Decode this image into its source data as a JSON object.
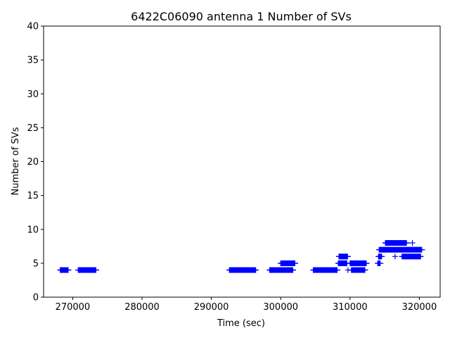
{
  "chart_data": {
    "type": "scatter",
    "title": "6422C06090 antenna 1 Number of SVs",
    "xlabel": "Time (sec)",
    "ylabel": "Number of SVs",
    "xlim": [
      265800,
      323000
    ],
    "ylim": [
      0,
      40
    ],
    "x_ticks": [
      270000,
      280000,
      290000,
      300000,
      310000,
      320000
    ],
    "x_tick_labels": [
      "270000",
      "280000",
      "290000",
      "300000",
      "310000",
      "320000"
    ],
    "y_ticks": [
      0,
      5,
      10,
      15,
      20,
      25,
      30,
      35,
      40
    ],
    "y_tick_labels": [
      "0",
      "5",
      "10",
      "15",
      "20",
      "25",
      "30",
      "35",
      "40"
    ],
    "grid": false,
    "marker": "+",
    "color": "#0000ff",
    "segments": [
      {
        "x_start": 268200,
        "x_end": 269400,
        "y": 4
      },
      {
        "x_start": 270800,
        "x_end": 273400,
        "y": 4
      },
      {
        "x_start": 292600,
        "x_end": 296400,
        "y": 4
      },
      {
        "x_start": 298400,
        "x_end": 301800,
        "y": 4
      },
      {
        "x_start": 300000,
        "x_end": 302100,
        "y": 5
      },
      {
        "x_start": 304700,
        "x_end": 308200,
        "y": 4
      },
      {
        "x_start": 308300,
        "x_end": 309600,
        "y": 5
      },
      {
        "x_start": 308400,
        "x_end": 309700,
        "y": 6
      },
      {
        "x_start": 310000,
        "x_end": 312400,
        "y": 5
      },
      {
        "x_start": 310200,
        "x_end": 312200,
        "y": 4
      },
      {
        "x_start": 314000,
        "x_end": 314400,
        "y": 5
      },
      {
        "x_start": 314100,
        "x_end": 314600,
        "y": 6
      },
      {
        "x_start": 314200,
        "x_end": 320400,
        "y": 7
      },
      {
        "x_start": 315100,
        "x_end": 318200,
        "y": 8
      },
      {
        "x_start": 317500,
        "x_end": 320200,
        "y": 6
      }
    ],
    "points": [
      {
        "x": 309700,
        "y": 4
      },
      {
        "x": 316500,
        "y": 6
      },
      {
        "x": 319000,
        "y": 8
      }
    ]
  }
}
